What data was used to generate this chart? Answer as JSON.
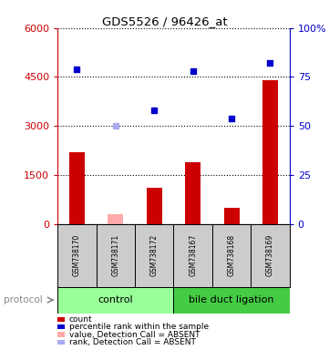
{
  "title": "GDS5526 / 96426_at",
  "samples": [
    "GSM738170",
    "GSM738171",
    "GSM738172",
    "GSM738167",
    "GSM738168",
    "GSM738169"
  ],
  "bar_values": [
    2200,
    null,
    1100,
    1900,
    500,
    4400
  ],
  "bar_absent_values": [
    null,
    300,
    null,
    null,
    null,
    null
  ],
  "dot_values": [
    79,
    null,
    58,
    78,
    54,
    82
  ],
  "dot_absent_values": [
    null,
    50,
    null,
    null,
    null,
    null
  ],
  "bar_color": "#cc0000",
  "bar_absent_color": "#ffaaaa",
  "dot_color": "#0000cc",
  "dot_absent_color": "#aaaaee",
  "ylim_left": [
    0,
    6000
  ],
  "ylim_right": [
    0,
    100
  ],
  "yticks_left": [
    0,
    1500,
    3000,
    4500,
    6000
  ],
  "ytick_labels_left": [
    "0",
    "1500",
    "3000",
    "4500",
    "6000"
  ],
  "yticks_right": [
    0,
    25,
    50,
    75,
    100
  ],
  "ytick_labels_right": [
    "0",
    "25",
    "50",
    "75",
    "100%"
  ],
  "left_axis_color": "#cc0000",
  "right_axis_color": "#0000cc",
  "group_control_color": "#99ff99",
  "group_bile_color": "#44cc44",
  "sample_box_color": "#cccccc",
  "legend_items": [
    {
      "label": "count",
      "color": "#cc0000"
    },
    {
      "label": "percentile rank within the sample",
      "color": "#0000cc"
    },
    {
      "label": "value, Detection Call = ABSENT",
      "color": "#ffaaaa"
    },
    {
      "label": "rank, Detection Call = ABSENT",
      "color": "#aaaaee"
    }
  ],
  "protocol_label": "protocol"
}
